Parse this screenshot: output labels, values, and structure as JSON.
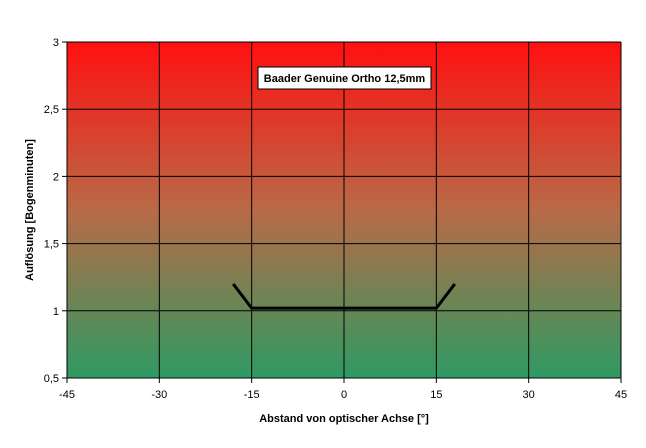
{
  "chart_data": {
    "type": "line",
    "title": "Baader Genuine Ortho 12,5mm",
    "xlabel": "Abstand von optischer Achse [°]",
    "ylabel": "Auflösung [Bogenminuten]",
    "xlim": [
      -45,
      45
    ],
    "ylim": [
      0.5,
      3
    ],
    "xticks": [
      -45,
      -30,
      -15,
      0,
      15,
      30,
      45
    ],
    "xtick_labels": [
      "-45",
      "-30",
      "-15",
      "0",
      "15",
      "30",
      "45"
    ],
    "yticks": [
      0.5,
      1,
      1.5,
      2,
      2.5,
      3
    ],
    "ytick_labels": [
      "0,5",
      "1",
      "1,5",
      "2",
      "2,5",
      "3"
    ],
    "grid": true,
    "legend": "none",
    "background_gradient": {
      "top": "#ff1010",
      "bottom": "#2e9a62"
    },
    "series": [
      {
        "color": "#000000",
        "x": [
          -18,
          -15,
          -12,
          -9,
          -6,
          -3,
          0,
          3,
          6,
          9,
          12,
          15,
          18
        ],
        "y": [
          1.2,
          1.02,
          1.02,
          1.02,
          1.02,
          1.02,
          1.02,
          1.02,
          1.02,
          1.02,
          1.02,
          1.02,
          1.2
        ]
      }
    ]
  }
}
